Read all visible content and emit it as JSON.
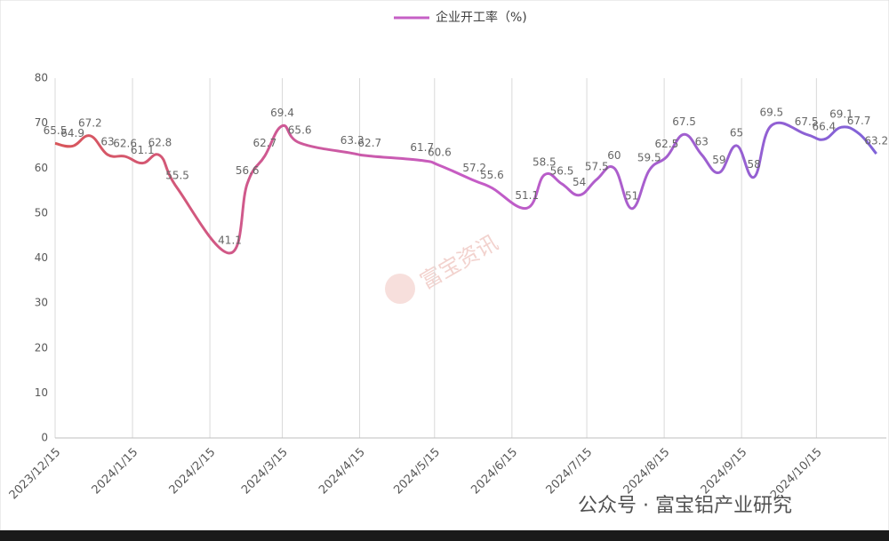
{
  "chart_data": {
    "type": "line",
    "title": null,
    "x": [
      "2023/12/15",
      "2023/12/22",
      "2023/12/29",
      "2024/1/5",
      "2024/1/12",
      "2024/1/19",
      "2024/1/26",
      "2024/2/2",
      "2024/2/23",
      "2024/3/1",
      "2024/3/8",
      "2024/3/15",
      "2024/3/22",
      "2024/4/12",
      "2024/4/19",
      "2024/5/10",
      "2024/5/17",
      "2024/5/31",
      "2024/6/7",
      "2024/6/21",
      "2024/6/28",
      "2024/7/5",
      "2024/7/12",
      "2024/7/19",
      "2024/7/26",
      "2024/8/2",
      "2024/8/9",
      "2024/8/16",
      "2024/8/23",
      "2024/8/30",
      "2024/9/6",
      "2024/9/13",
      "2024/9/20",
      "2024/9/27",
      "2024/10/11",
      "2024/10/18",
      "2024/10/25",
      "2024/11/1",
      "2024/11/8"
    ],
    "series": [
      {
        "name": "企业开工率（%)",
        "color": "#c660c6",
        "values": [
          65.5,
          64.9,
          67.2,
          63,
          62.6,
          61.1,
          62.8,
          55.5,
          41.1,
          56.6,
          62.7,
          69.4,
          65.6,
          63.3,
          62.7,
          61.7,
          60.6,
          57.2,
          55.6,
          51.1,
          58.5,
          56.5,
          54,
          57.5,
          60,
          51,
          59.5,
          62.5,
          67.5,
          63,
          59,
          65,
          58,
          69.5,
          67.5,
          66.4,
          69.1,
          67.7,
          63.2
        ]
      }
    ],
    "gradient": [
      "#d8565a",
      "#c65cc6",
      "#7e62d8"
    ],
    "xlim": [
      "2023/12/15",
      "2024/11/12"
    ],
    "xticks": [
      "2023/12/15",
      "2024/1/15",
      "2024/2/15",
      "2024/3/15",
      "2024/4/15",
      "2024/5/15",
      "2024/6/15",
      "2024/7/15",
      "2024/8/15",
      "2024/9/15",
      "2024/10/15"
    ],
    "ylim": [
      0,
      80
    ],
    "yticks": [
      0,
      10,
      20,
      30,
      40,
      50,
      60,
      70,
      80
    ],
    "grid": "x",
    "legend": "top"
  },
  "watermarks": [
    "富宝资讯",
    "公众号 · 富宝铝产业研究"
  ]
}
